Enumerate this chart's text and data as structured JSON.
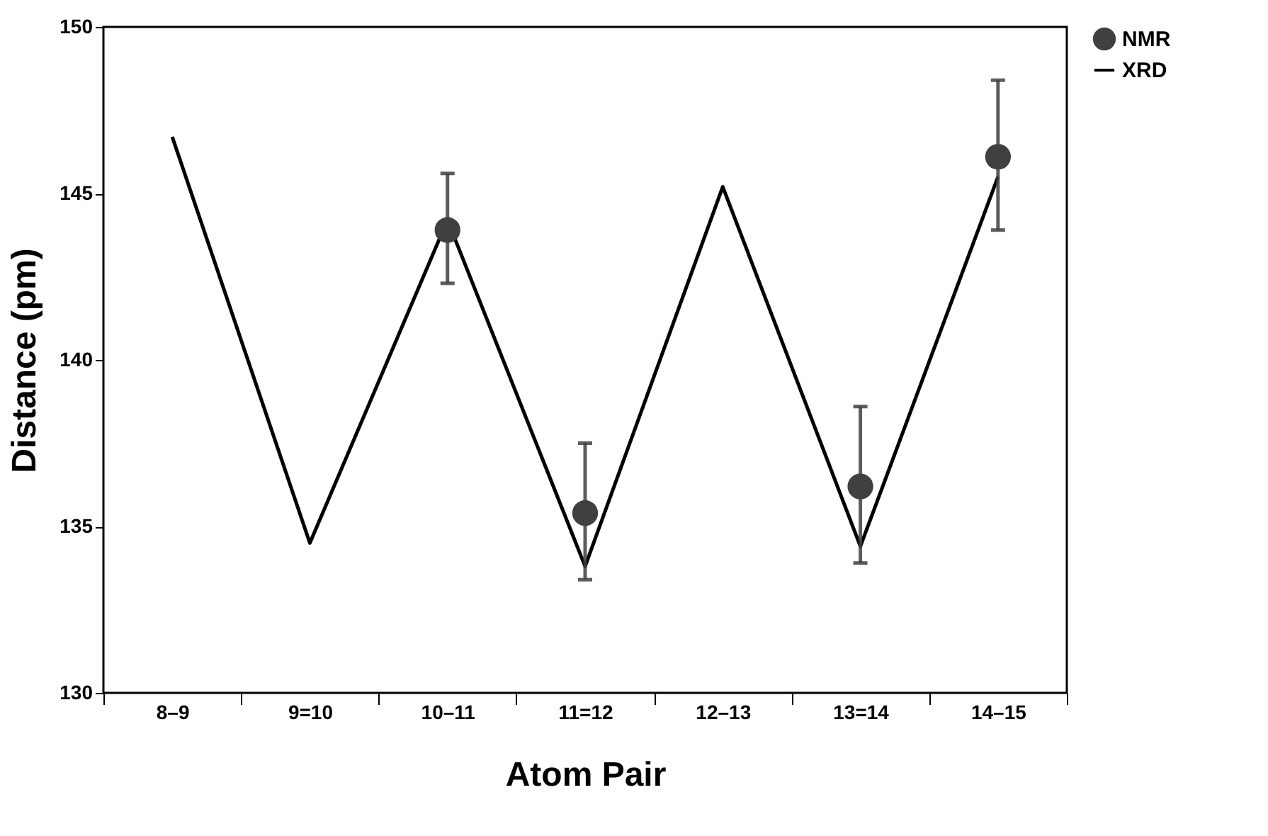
{
  "chart_data": {
    "type": "line",
    "xlabel": "Atom Pair",
    "ylabel": "Distance (pm)",
    "categories": [
      "8–9",
      "9=10",
      "10–11",
      "11=12",
      "12–13",
      "13=14",
      "14–15"
    ],
    "ylim": [
      130,
      150
    ],
    "yticks": [
      130,
      135,
      140,
      145,
      150
    ],
    "grid": false,
    "legend": "top right",
    "series": [
      {
        "name": "NMR",
        "type": "scatter",
        "marker": "circle",
        "color": "#404040",
        "values": [
          null,
          null,
          143.9,
          135.4,
          null,
          136.2,
          146.1
        ],
        "errors": [
          null,
          null,
          [
            142.3,
            145.6
          ],
          [
            133.4,
            137.5
          ],
          null,
          [
            133.9,
            138.6
          ],
          [
            143.9,
            148.4
          ]
        ]
      },
      {
        "name": "XRD",
        "marker": "none",
        "line_style": "solid",
        "color": "#000000",
        "values": [
          146.7,
          134.5,
          144.2,
          133.8,
          145.2,
          134.4,
          145.5
        ]
      }
    ]
  }
}
